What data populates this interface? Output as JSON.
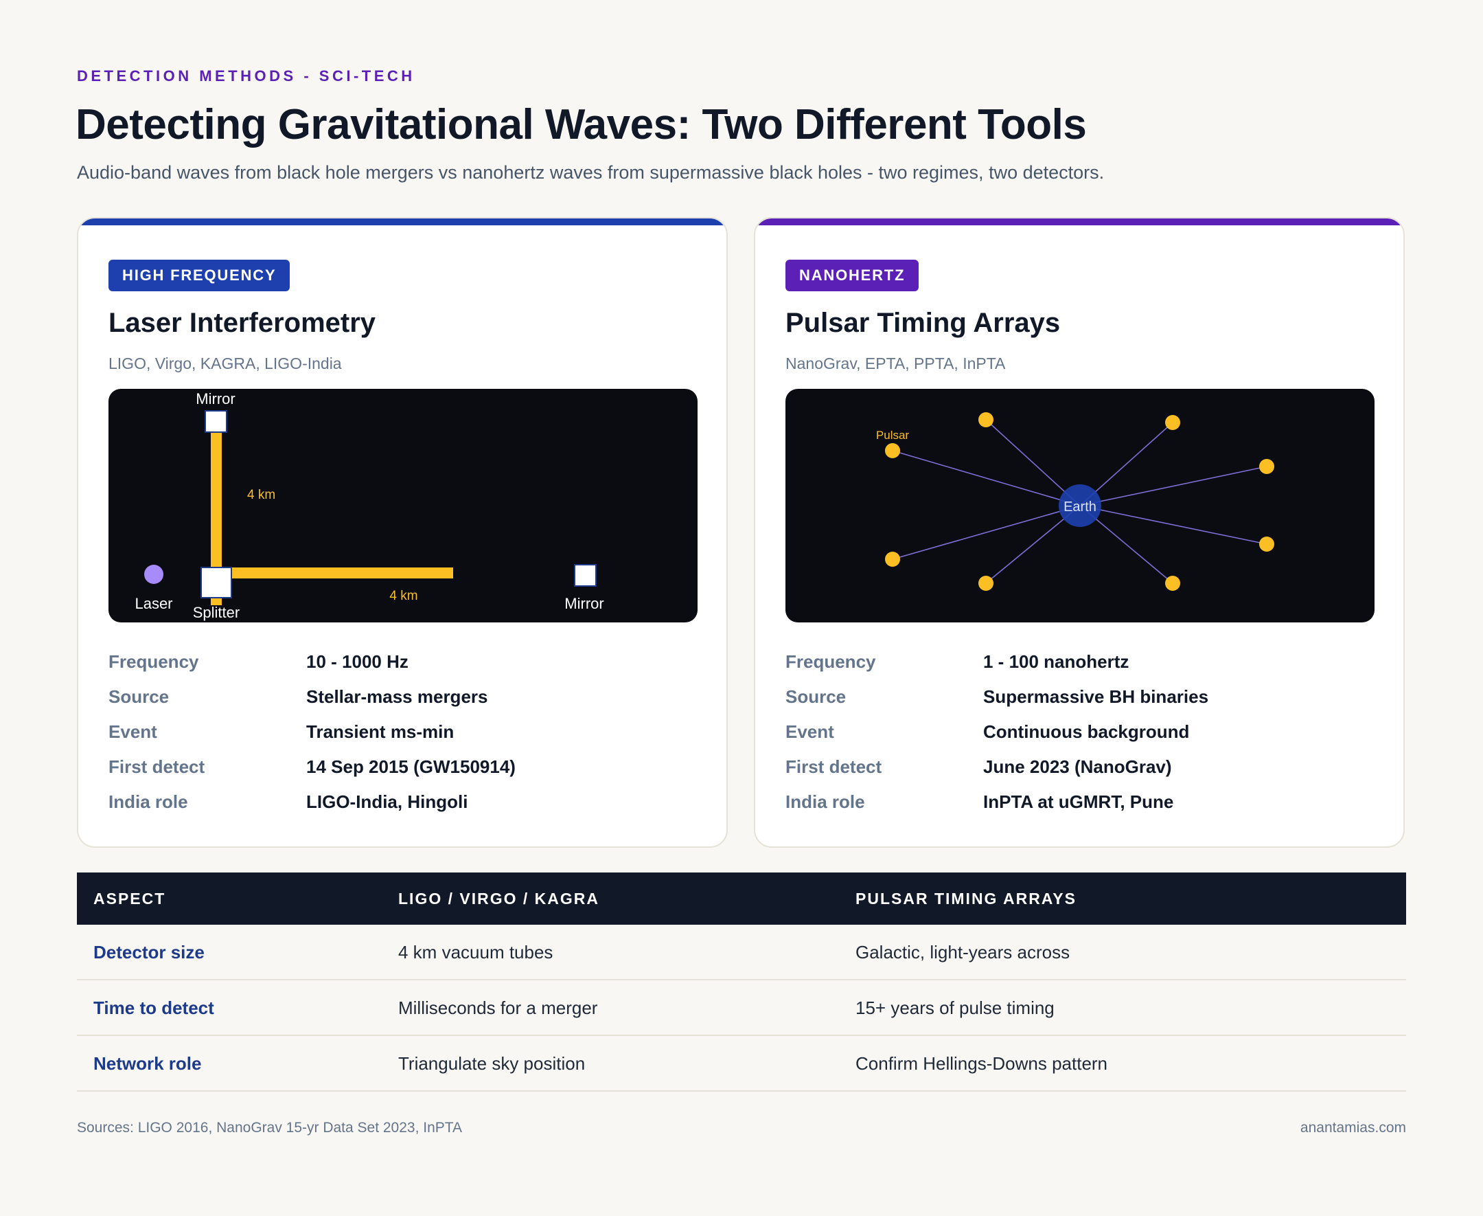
{
  "header": {
    "kicker": "DETECTION METHODS - SCI-TECH",
    "title": "Detecting Gravitational Waves: Two Different Tools",
    "subtitle": "Audio-band waves from black hole mergers vs nanohertz waves from supermassive black holes - two regimes, two detectors."
  },
  "colors": {
    "ligo_accent": "#1e40af",
    "pta_accent": "#5b21b6",
    "beam": "#fbbf24",
    "laser": "#a78bfa",
    "earth": "#1e40af",
    "pulsar_line": "#7c6fd6"
  },
  "cards": [
    {
      "badge": "HIGH FREQUENCY",
      "title": "Laser Interferometry",
      "subtitle": "LIGO, Virgo, KAGRA, LIGO-India",
      "diagram": {
        "mirror_top_label": "Mirror",
        "mirror_right_label": "Mirror",
        "splitter_label": "Splitter",
        "laser_label": "Laser",
        "arm_vertical_label": "4 km",
        "arm_horizontal_label": "4 km"
      },
      "specs": [
        {
          "label": "Frequency",
          "value": "10 - 1000 Hz"
        },
        {
          "label": "Source",
          "value": "Stellar-mass mergers"
        },
        {
          "label": "Event",
          "value": "Transient ms-min"
        },
        {
          "label": "First detect",
          "value": "14 Sep 2015 (GW150914)"
        },
        {
          "label": "India role",
          "value": "LIGO-India, Hingoli"
        }
      ]
    },
    {
      "badge": "NANOHERTZ",
      "title": "Pulsar Timing Arrays",
      "subtitle": "NanoGrav, EPTA, PPTA, InPTA",
      "diagram": {
        "center_label": "Earth",
        "pulsar_label": "Pulsar",
        "pulsar_count": 8
      },
      "specs": [
        {
          "label": "Frequency",
          "value": "1 - 100 nanohertz"
        },
        {
          "label": "Source",
          "value": "Supermassive BH binaries"
        },
        {
          "label": "Event",
          "value": "Continuous background"
        },
        {
          "label": "First detect",
          "value": "June 2023 (NanoGrav)"
        },
        {
          "label": "India role",
          "value": "InPTA at uGMRT, Pune"
        }
      ]
    }
  ],
  "table": {
    "headers": [
      "ASPECT",
      "LIGO / VIRGO / KAGRA",
      "PULSAR TIMING ARRAYS"
    ],
    "rows": [
      [
        "Detector size",
        "4 km vacuum tubes",
        "Galactic, light-years across"
      ],
      [
        "Time to detect",
        "Milliseconds for a merger",
        "15+ years of pulse timing"
      ],
      [
        "Network role",
        "Triangulate sky position",
        "Confirm Hellings-Downs pattern"
      ]
    ]
  },
  "footer": {
    "sources": "Sources: LIGO 2016, NanoGrav 15-yr Data Set 2023, InPTA",
    "site": "anantamias.com"
  }
}
